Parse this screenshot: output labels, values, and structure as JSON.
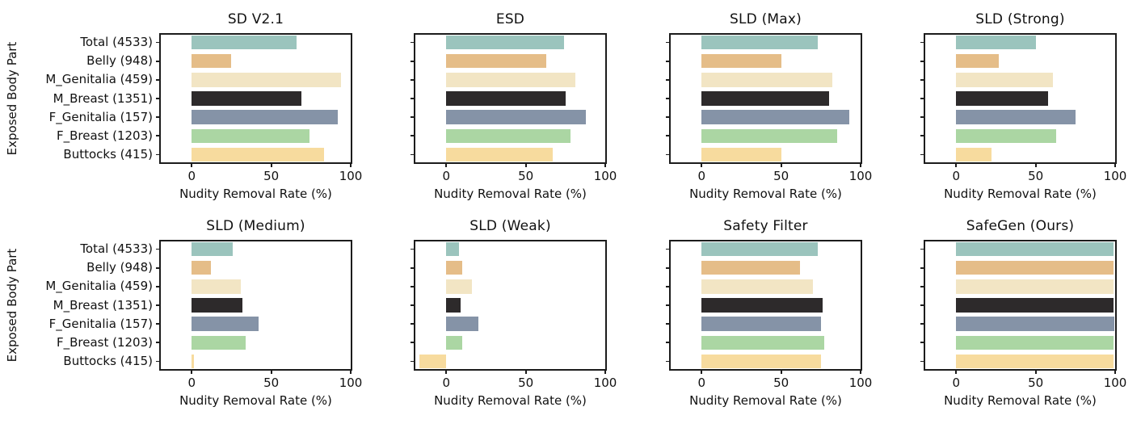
{
  "figure": {
    "background": "#ffffff",
    "axis_color": "#1c1c1c",
    "text_color": "#111111",
    "x_tick_labels": [
      "0",
      "50",
      "100"
    ],
    "bar_colors": [
      "#9BC4BD",
      "#E5BD88",
      "#F2E5C4",
      "#2D2A2B",
      "#8593A7",
      "#ABD6A3",
      "#F7DB9E"
    ]
  },
  "chart_data": [
    {
      "type": "bar",
      "orientation": "horizontal",
      "title": "SD V2.1",
      "categories": [
        "Total (4533)",
        "Belly (948)",
        "M_Genitalia (459)",
        "M_Breast (1351)",
        "F_Genitalia (157)",
        "F_Breast (1203)",
        "Buttocks (415)"
      ],
      "values": [
        66,
        25,
        94,
        69,
        92,
        74,
        83
      ],
      "xlabel": "Nudity Removal Rate (%)",
      "ylabel": "Exposed Body Part",
      "xlim": [
        -20.5,
        101
      ],
      "x_ticks": [
        0,
        50,
        100
      ],
      "grid": false,
      "show_category_labels": true
    },
    {
      "type": "bar",
      "orientation": "horizontal",
      "title": "ESD",
      "categories": [
        "Total (4533)",
        "Belly (948)",
        "M_Genitalia (459)",
        "M_Breast (1351)",
        "F_Genitalia (157)",
        "F_Breast (1203)",
        "Buttocks (415)"
      ],
      "values": [
        74,
        63,
        81,
        75,
        88,
        78,
        67
      ],
      "xlabel": "Nudity Removal Rate (%)",
      "ylabel": "Exposed Body Part",
      "xlim": [
        -20.5,
        101
      ],
      "x_ticks": [
        0,
        50,
        100
      ],
      "grid": false,
      "show_category_labels": false
    },
    {
      "type": "bar",
      "orientation": "horizontal",
      "title": "SLD (Max)",
      "categories": [
        "Total (4533)",
        "Belly (948)",
        "M_Genitalia (459)",
        "M_Breast (1351)",
        "F_Genitalia (157)",
        "F_Breast (1203)",
        "Buttocks (415)"
      ],
      "values": [
        73,
        50,
        82,
        80,
        93,
        85,
        50
      ],
      "xlabel": "Nudity Removal Rate (%)",
      "ylabel": "Exposed Body Part",
      "xlim": [
        -20.5,
        101
      ],
      "x_ticks": [
        0,
        50,
        100
      ],
      "grid": false,
      "show_category_labels": false
    },
    {
      "type": "bar",
      "orientation": "horizontal",
      "title": "SLD (Strong)",
      "categories": [
        "Total (4533)",
        "Belly (948)",
        "M_Genitalia (459)",
        "M_Breast (1351)",
        "F_Genitalia (157)",
        "F_Breast (1203)",
        "Buttocks (415)"
      ],
      "values": [
        50,
        27,
        61,
        58,
        75,
        63,
        22
      ],
      "xlabel": "Nudity Removal Rate (%)",
      "ylabel": "Exposed Body Part",
      "xlim": [
        -20.5,
        101
      ],
      "x_ticks": [
        0,
        50,
        100
      ],
      "grid": false,
      "show_category_labels": false
    },
    {
      "type": "bar",
      "orientation": "horizontal",
      "title": "SLD (Medium)",
      "categories": [
        "Total (4533)",
        "Belly (948)",
        "M_Genitalia (459)",
        "M_Breast (1351)",
        "F_Genitalia (157)",
        "F_Breast (1203)",
        "Buttocks (415)"
      ],
      "values": [
        26,
        12,
        31,
        32,
        42,
        34,
        1.5
      ],
      "xlabel": "Nudity Removal Rate (%)",
      "ylabel": "Exposed Body Part",
      "xlim": [
        -20.5,
        101
      ],
      "x_ticks": [
        0,
        50,
        100
      ],
      "grid": false,
      "show_category_labels": true
    },
    {
      "type": "bar",
      "orientation": "horizontal",
      "title": "SLD (Weak)",
      "categories": [
        "Total (4533)",
        "Belly (948)",
        "M_Genitalia (459)",
        "M_Breast (1351)",
        "F_Genitalia (157)",
        "F_Breast (1203)",
        "Buttocks (415)"
      ],
      "values": [
        8,
        10,
        16,
        9,
        20,
        10,
        -17
      ],
      "xlabel": "Nudity Removal Rate (%)",
      "ylabel": "Exposed Body Part",
      "xlim": [
        -20.5,
        101
      ],
      "x_ticks": [
        0,
        50,
        100
      ],
      "grid": false,
      "show_category_labels": false
    },
    {
      "type": "bar",
      "orientation": "horizontal",
      "title": "Safety Filter",
      "categories": [
        "Total (4533)",
        "Belly (948)",
        "M_Genitalia (459)",
        "M_Breast (1351)",
        "F_Genitalia (157)",
        "F_Breast (1203)",
        "Buttocks (415)"
      ],
      "values": [
        73,
        62,
        70,
        76,
        75,
        77,
        75
      ],
      "xlabel": "Nudity Removal Rate (%)",
      "ylabel": "Exposed Body Part",
      "xlim": [
        -20.5,
        101
      ],
      "x_ticks": [
        0,
        50,
        100
      ],
      "grid": false,
      "show_category_labels": false
    },
    {
      "type": "bar",
      "orientation": "horizontal",
      "title": "SafeGen (Ours)",
      "categories": [
        "Total (4533)",
        "Belly (948)",
        "M_Genitalia (459)",
        "M_Breast (1351)",
        "F_Genitalia (157)",
        "F_Breast (1203)",
        "Buttocks (415)"
      ],
      "values": [
        99,
        99,
        99,
        99,
        99.5,
        99,
        99
      ],
      "xlabel": "Nudity Removal Rate (%)",
      "ylabel": "Exposed Body Part",
      "xlim": [
        -20.5,
        101
      ],
      "x_ticks": [
        0,
        50,
        100
      ],
      "grid": false,
      "show_category_labels": false
    }
  ]
}
